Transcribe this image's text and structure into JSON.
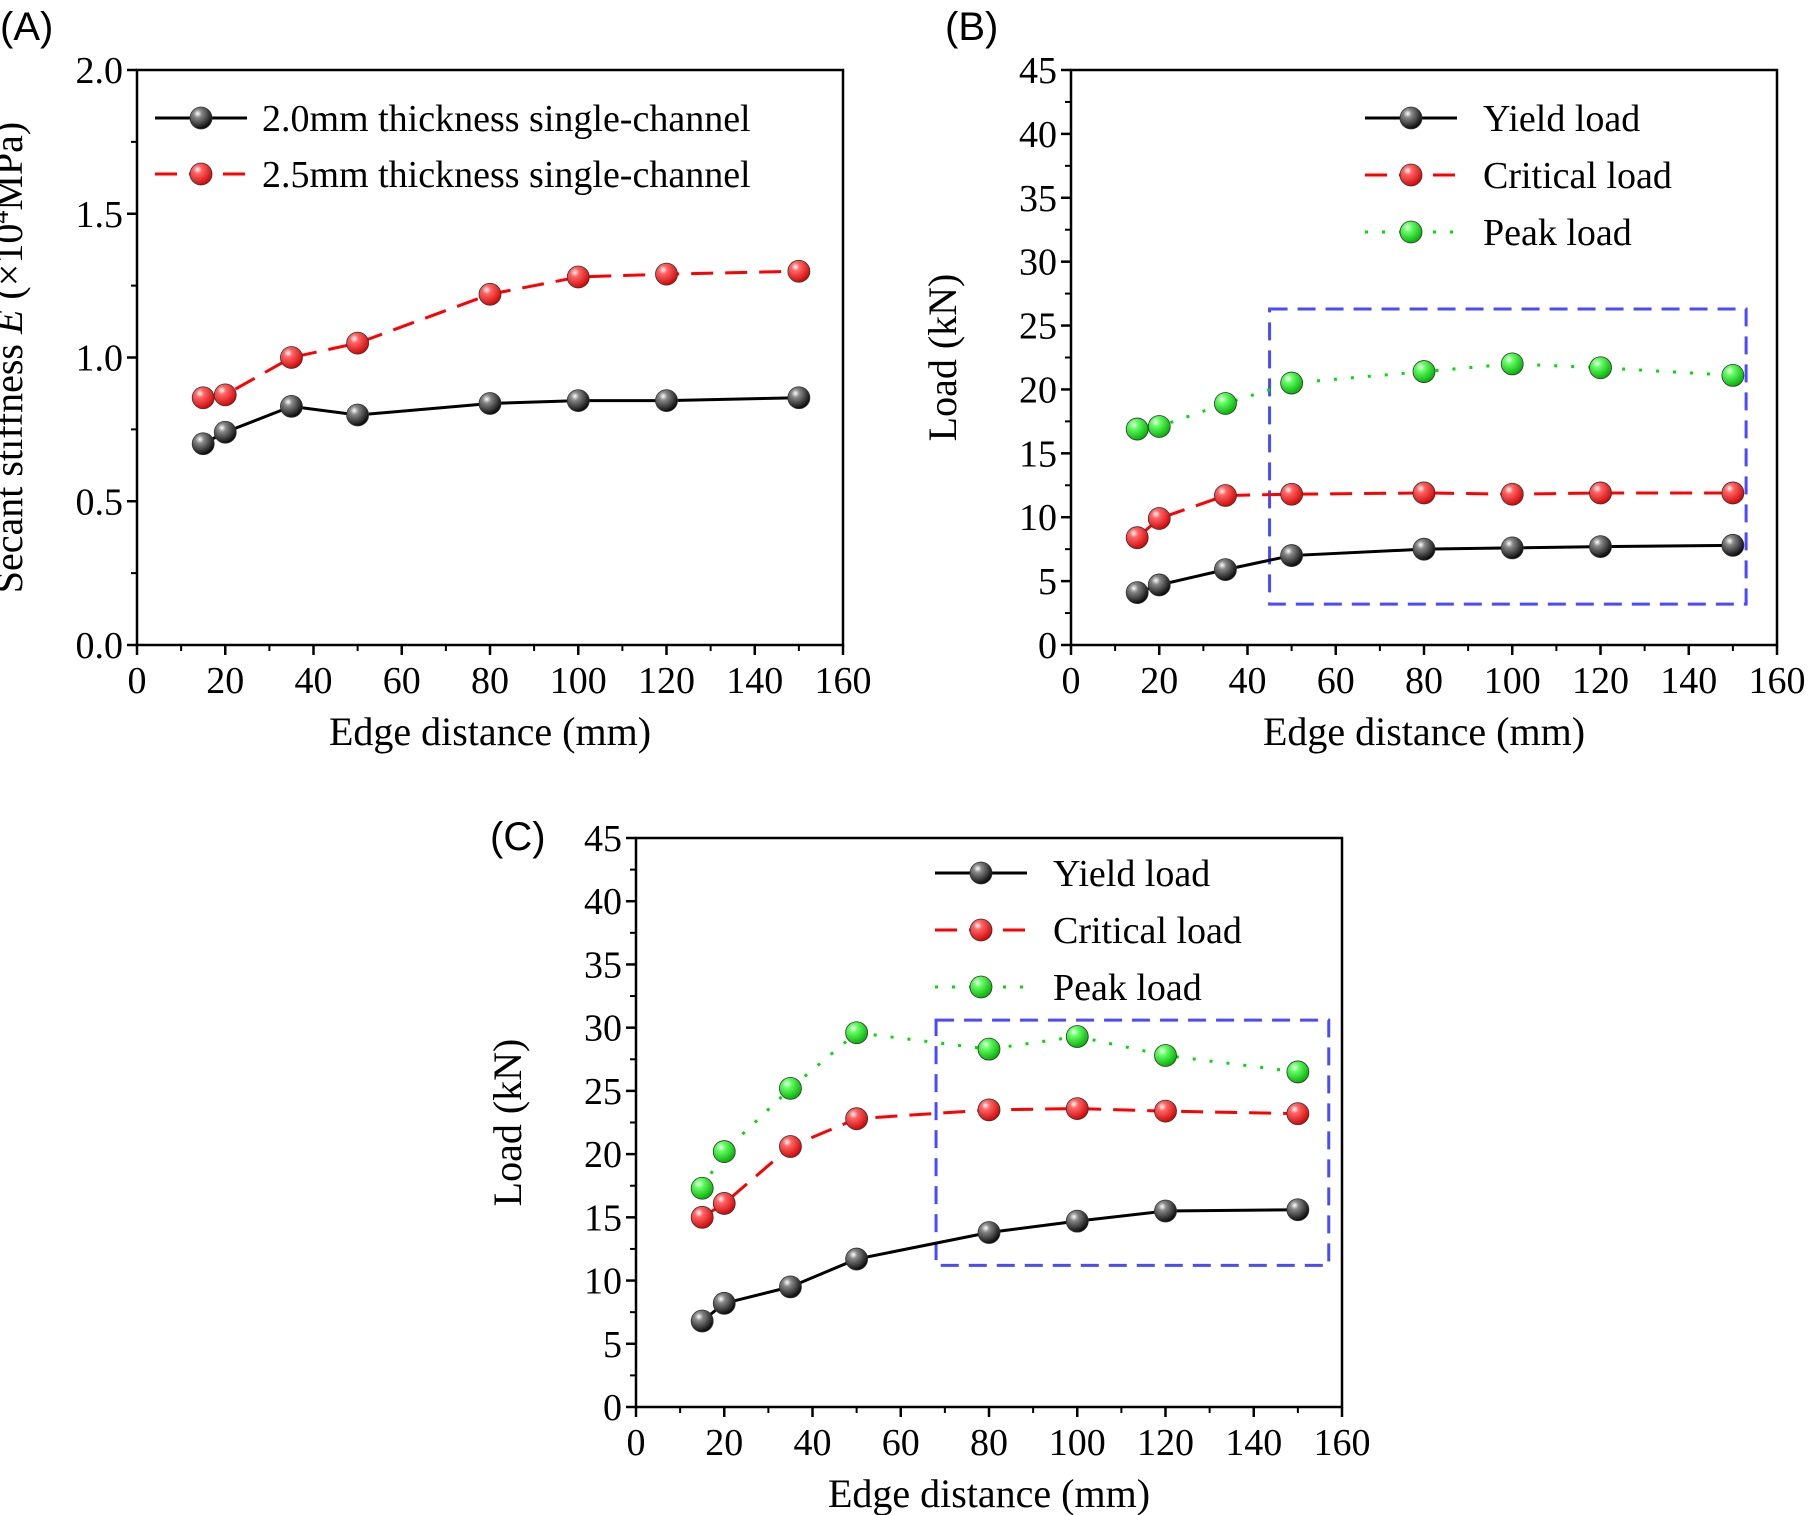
{
  "chart_data": [
    {
      "panel": "(A)",
      "type": "line",
      "xlabel": "Edge distance (mm)",
      "ylabel_parts": [
        "Secant stiffness ",
        "E",
        " (×10",
        "4",
        "MPa)"
      ],
      "xlim": [
        0,
        160
      ],
      "ylim": [
        0.0,
        2.0
      ],
      "xticks": [
        "0",
        "20",
        "40",
        "60",
        "80",
        "100",
        "120",
        "140",
        "160"
      ],
      "yticks": [
        "0.0",
        "0.5",
        "1.0",
        "1.5",
        "2.0"
      ],
      "legend_position": "top-left",
      "x": [
        15,
        20,
        35,
        50,
        80,
        100,
        120,
        150
      ],
      "series": [
        {
          "name": "2.0mm thickness single-channel",
          "color": "#000000",
          "style": "solid",
          "values": [
            0.7,
            0.74,
            0.83,
            0.8,
            0.84,
            0.85,
            0.85,
            0.86
          ]
        },
        {
          "name": "2.5mm thickness single-channel",
          "color": "#ff0000",
          "style": "dashed",
          "values": [
            0.86,
            0.87,
            1.0,
            1.05,
            1.22,
            1.28,
            1.29,
            1.3
          ]
        }
      ]
    },
    {
      "panel": "(B)",
      "type": "line",
      "xlabel": "Edge distance (mm)",
      "ylabel": "Load (kN)",
      "xlim": [
        0,
        160
      ],
      "ylim": [
        0,
        45
      ],
      "xticks": [
        "0",
        "20",
        "40",
        "60",
        "80",
        "100",
        "120",
        "140",
        "160"
      ],
      "yticks": [
        "0",
        "5",
        "10",
        "15",
        "20",
        "25",
        "30",
        "35",
        "40",
        "45"
      ],
      "legend_position": "top-right",
      "highlight_box": {
        "x": [
          45,
          153
        ],
        "y": [
          3.2,
          26.3
        ],
        "color": "#4a4aff"
      },
      "x": [
        15,
        20,
        35,
        50,
        80,
        100,
        120,
        150
      ],
      "series": [
        {
          "name": "Yield load",
          "color": "#000000",
          "style": "solid",
          "values": [
            4.1,
            4.7,
            5.9,
            7.0,
            7.5,
            7.6,
            7.7,
            7.8
          ]
        },
        {
          "name": "Critical load",
          "color": "#ff0000",
          "style": "dashed",
          "values": [
            8.4,
            9.9,
            11.7,
            11.8,
            11.9,
            11.8,
            11.9,
            11.9
          ]
        },
        {
          "name": "Peak load",
          "color": "#00dd00",
          "style": "dotted",
          "values": [
            16.9,
            17.1,
            18.9,
            20.5,
            21.4,
            22.0,
            21.7,
            21.1
          ]
        }
      ]
    },
    {
      "panel": "(C)",
      "type": "line",
      "xlabel": "Edge distance (mm)",
      "ylabel": "Load (kN)",
      "xlim": [
        0,
        160
      ],
      "ylim": [
        0,
        45
      ],
      "xticks": [
        "0",
        "20",
        "40",
        "60",
        "80",
        "100",
        "120",
        "140",
        "160"
      ],
      "yticks": [
        "0",
        "5",
        "10",
        "15",
        "20",
        "25",
        "30",
        "35",
        "40",
        "45"
      ],
      "legend_position": "top-right",
      "highlight_box": {
        "x": [
          68,
          157
        ],
        "y": [
          11.2,
          30.6
        ],
        "color": "#4a4aff"
      },
      "x": [
        15,
        20,
        35,
        50,
        80,
        100,
        120,
        150
      ],
      "series": [
        {
          "name": "Yield load",
          "color": "#000000",
          "style": "solid",
          "values": [
            6.8,
            8.2,
            9.5,
            11.7,
            13.8,
            14.7,
            15.5,
            15.6
          ]
        },
        {
          "name": "Critical load",
          "color": "#ff0000",
          "style": "dashed",
          "values": [
            15.0,
            16.1,
            20.6,
            22.8,
            23.5,
            23.6,
            23.4,
            23.2
          ]
        },
        {
          "name": "Peak load",
          "color": "#00dd00",
          "style": "dotted",
          "values": [
            17.3,
            20.2,
            25.2,
            29.6,
            28.3,
            29.3,
            27.8,
            26.5
          ]
        }
      ]
    }
  ]
}
